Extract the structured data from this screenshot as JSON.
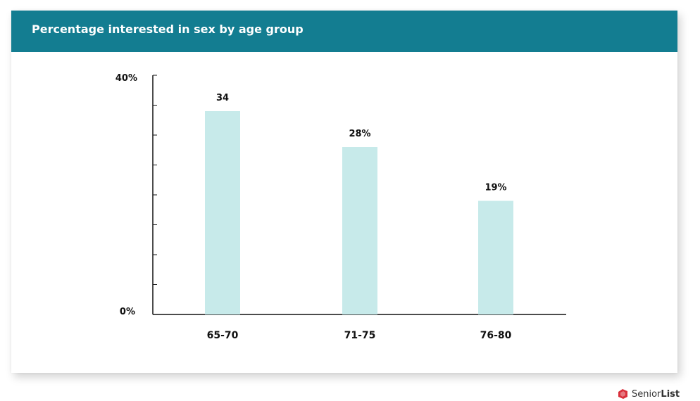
{
  "header": {
    "title": "Percentage interested in sex by age group"
  },
  "chart_data": {
    "type": "bar",
    "categories": [
      "65-70",
      "71-75",
      "76-80"
    ],
    "values": [
      34,
      28,
      19
    ],
    "data_labels": [
      "34",
      "28%",
      "19%"
    ],
    "ylim": [
      0,
      40
    ],
    "ytick_labels": {
      "top": "40%",
      "bottom": "0%"
    },
    "minor_ticks": 8,
    "bar_color": "#c7eaea",
    "grid": false
  },
  "brand": {
    "text_a": "Senior",
    "text_b": "List",
    "logo_color": "#d9303c"
  },
  "colors": {
    "header_bg": "#137d91"
  }
}
